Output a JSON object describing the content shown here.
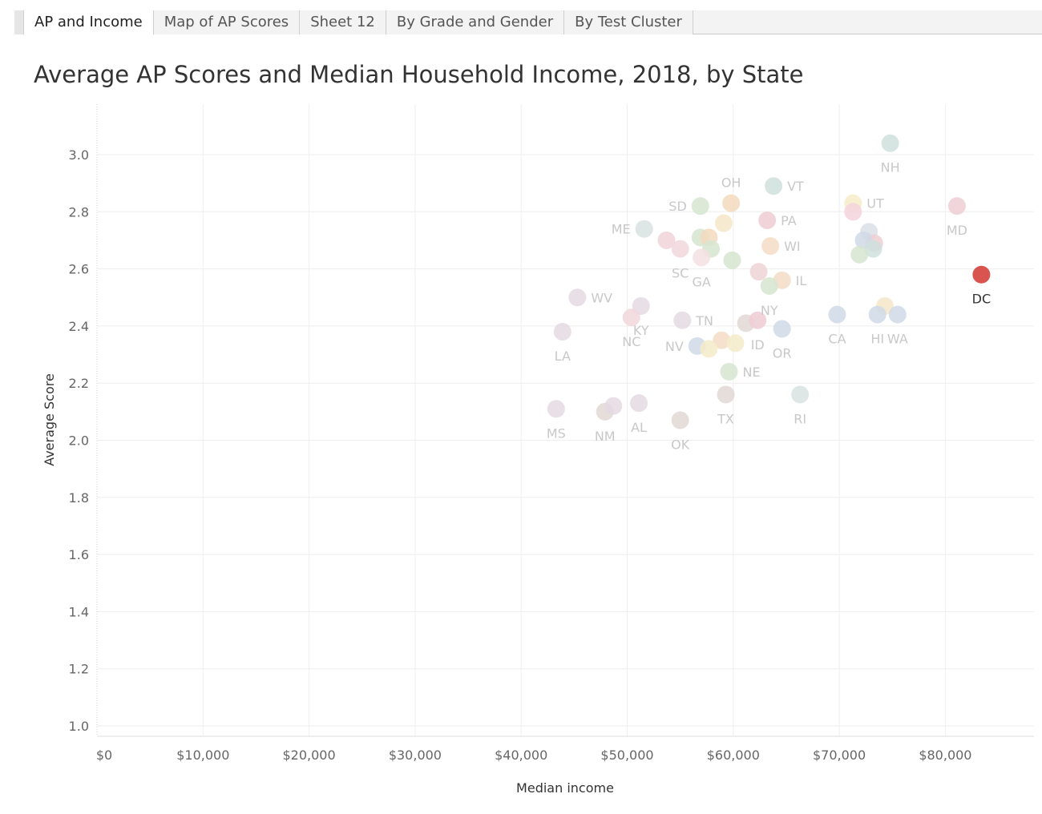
{
  "tabs": [
    {
      "label": "AP and Income",
      "active": true
    },
    {
      "label": "Map of AP Scores",
      "active": false
    },
    {
      "label": "Sheet 12",
      "active": false
    },
    {
      "label": "By Grade and Gender",
      "active": false
    },
    {
      "label": "By Test Cluster",
      "active": false
    }
  ],
  "chart_data": {
    "type": "scatter",
    "title": "Average AP Scores and Median Household Income, 2018, by State",
    "xlabel": "Median income",
    "ylabel": "Average Score",
    "xlim": [
      0,
      88000
    ],
    "ylim": [
      0.96,
      3.17
    ],
    "x_ticks": [
      {
        "value": 0,
        "label": "$0"
      },
      {
        "value": 10000,
        "label": "$10,000"
      },
      {
        "value": 20000,
        "label": "$20,000"
      },
      {
        "value": 30000,
        "label": "$30,000"
      },
      {
        "value": 40000,
        "label": "$40,000"
      },
      {
        "value": 50000,
        "label": "$50,000"
      },
      {
        "value": 60000,
        "label": "$60,000"
      },
      {
        "value": 70000,
        "label": "$70,000"
      },
      {
        "value": 80000,
        "label": "$80,000"
      }
    ],
    "y_ticks": [
      {
        "value": 1.0,
        "label": "1.0"
      },
      {
        "value": 1.2,
        "label": "1.2"
      },
      {
        "value": 1.4,
        "label": "1.4"
      },
      {
        "value": 1.6,
        "label": "1.6"
      },
      {
        "value": 1.8,
        "label": "1.8"
      },
      {
        "value": 2.0,
        "label": "2.0"
      },
      {
        "value": 2.2,
        "label": "2.2"
      },
      {
        "value": 2.4,
        "label": "2.4"
      },
      {
        "value": 2.6,
        "label": "2.6"
      },
      {
        "value": 2.8,
        "label": "2.8"
      },
      {
        "value": 3.0,
        "label": "3.0"
      }
    ],
    "grid": true,
    "highlight": "DC",
    "highlight_color": "#d9534f",
    "points": [
      {
        "x": 74800,
        "y": 3.04,
        "label": "NH",
        "label_pos": "below",
        "color": "#cfe0dd"
      },
      {
        "x": 63800,
        "y": 2.89,
        "label": "VT",
        "label_pos": "right",
        "color": "#cfe0dd"
      },
      {
        "x": 59800,
        "y": 2.83,
        "label": "OH",
        "label_pos": "above",
        "color": "#f3d9bd"
      },
      {
        "x": 56900,
        "y": 2.82,
        "label": "SD",
        "label_pos": "left",
        "color": "#d6e5d0"
      },
      {
        "x": 71300,
        "y": 2.83,
        "label": "UT",
        "label_pos": "right",
        "color": "#f7ecc8"
      },
      {
        "x": 71300,
        "y": 2.8,
        "label": "",
        "label_pos": "none",
        "color": "#f3d3dd"
      },
      {
        "x": 81100,
        "y": 2.82,
        "label": "MD",
        "label_pos": "below",
        "color": "#edcfd4"
      },
      {
        "x": 59100,
        "y": 2.76,
        "label": "",
        "label_pos": "none",
        "color": "#f5e6c9"
      },
      {
        "x": 63200,
        "y": 2.77,
        "label": "PA",
        "label_pos": "right",
        "color": "#efcdd3"
      },
      {
        "x": 51600,
        "y": 2.74,
        "label": "ME",
        "label_pos": "left",
        "color": "#d8e3e2"
      },
      {
        "x": 72800,
        "y": 2.73,
        "label": "",
        "label_pos": "none",
        "color": "#d9e1e8"
      },
      {
        "x": 73300,
        "y": 2.69,
        "label": "",
        "label_pos": "none",
        "color": "#f0cfd3"
      },
      {
        "x": 72300,
        "y": 2.7,
        "label": "",
        "label_pos": "none",
        "color": "#d0d9e6"
      },
      {
        "x": 73200,
        "y": 2.67,
        "label": "",
        "label_pos": "none",
        "color": "#cfe0dd"
      },
      {
        "x": 71900,
        "y": 2.65,
        "label": "",
        "label_pos": "none",
        "color": "#d6e5d0"
      },
      {
        "x": 53700,
        "y": 2.7,
        "label": "",
        "label_pos": "none",
        "color": "#f0d3d8"
      },
      {
        "x": 56900,
        "y": 2.71,
        "label": "",
        "label_pos": "none",
        "color": "#d6e5d0"
      },
      {
        "x": 57700,
        "y": 2.71,
        "label": "",
        "label_pos": "none",
        "color": "#f3d9bd"
      },
      {
        "x": 55000,
        "y": 2.67,
        "label": "SC",
        "label_pos": "below",
        "color": "#f2d7dc"
      },
      {
        "x": 57900,
        "y": 2.67,
        "label": "",
        "label_pos": "none",
        "color": "#d6e5d0"
      },
      {
        "x": 57000,
        "y": 2.64,
        "label": "GA",
        "label_pos": "below",
        "color": "#f4e0e3"
      },
      {
        "x": 63500,
        "y": 2.68,
        "label": "WI",
        "label_pos": "right",
        "color": "#f3dcc4"
      },
      {
        "x": 59900,
        "y": 2.63,
        "label": "",
        "label_pos": "none",
        "color": "#d6e5d0"
      },
      {
        "x": 62400,
        "y": 2.59,
        "label": "",
        "label_pos": "none",
        "color": "#eed3d6"
      },
      {
        "x": 64600,
        "y": 2.56,
        "label": "IL",
        "label_pos": "right",
        "color": "#f3dcc4"
      },
      {
        "x": 63400,
        "y": 2.54,
        "label": "NY",
        "label_pos": "below",
        "color": "#d6e5d0"
      },
      {
        "x": 83400,
        "y": 2.58,
        "label": "DC",
        "label_pos": "below",
        "color": "#d9534f"
      },
      {
        "x": 45300,
        "y": 2.5,
        "label": "WV",
        "label_pos": "right",
        "color": "#e4d9e3"
      },
      {
        "x": 51300,
        "y": 2.47,
        "label": "KY",
        "label_pos": "below",
        "color": "#e4d9e3"
      },
      {
        "x": 50400,
        "y": 2.43,
        "label": "NC",
        "label_pos": "below",
        "color": "#f2d7dc"
      },
      {
        "x": 55200,
        "y": 2.42,
        "label": "TN",
        "label_pos": "right",
        "color": "#e4d9e3"
      },
      {
        "x": 43900,
        "y": 2.38,
        "label": "LA",
        "label_pos": "below",
        "color": "#e4d9e3"
      },
      {
        "x": 74300,
        "y": 2.47,
        "label": "",
        "label_pos": "none",
        "color": "#f5e6c9"
      },
      {
        "x": 73600,
        "y": 2.44,
        "label": "HI",
        "label_pos": "below",
        "color": "#d0d9e6"
      },
      {
        "x": 75500,
        "y": 2.44,
        "label": "WA",
        "label_pos": "below",
        "color": "#d0d9e6"
      },
      {
        "x": 69800,
        "y": 2.44,
        "label": "CA",
        "label_pos": "below",
        "color": "#d0d9e6"
      },
      {
        "x": 61200,
        "y": 2.41,
        "label": "",
        "label_pos": "none",
        "color": "#e2d8d4"
      },
      {
        "x": 62300,
        "y": 2.42,
        "label": "ID",
        "label_pos": "below",
        "color": "#efcdd3"
      },
      {
        "x": 64600,
        "y": 2.39,
        "label": "OR",
        "label_pos": "below",
        "color": "#d0d9e6"
      },
      {
        "x": 56600,
        "y": 2.33,
        "label": "NV",
        "label_pos": "left",
        "color": "#d0d9e6"
      },
      {
        "x": 58900,
        "y": 2.35,
        "label": "",
        "label_pos": "none",
        "color": "#f3dcc4"
      },
      {
        "x": 60200,
        "y": 2.34,
        "label": "",
        "label_pos": "none",
        "color": "#f5ebc9"
      },
      {
        "x": 57700,
        "y": 2.32,
        "label": "",
        "label_pos": "none",
        "color": "#f5ebc9"
      },
      {
        "x": 59600,
        "y": 2.24,
        "label": "NE",
        "label_pos": "right",
        "color": "#d6e5d0"
      },
      {
        "x": 59300,
        "y": 2.16,
        "label": "TX",
        "label_pos": "below",
        "color": "#e2d8d4"
      },
      {
        "x": 66300,
        "y": 2.16,
        "label": "RI",
        "label_pos": "below",
        "color": "#d8e3e2"
      },
      {
        "x": 43300,
        "y": 2.11,
        "label": "MS",
        "label_pos": "below",
        "color": "#e4d9e3"
      },
      {
        "x": 47900,
        "y": 2.1,
        "label": "NM",
        "label_pos": "below",
        "color": "#e2d8d4"
      },
      {
        "x": 48700,
        "y": 2.12,
        "label": "",
        "label_pos": "none",
        "color": "#e4d9e3"
      },
      {
        "x": 51100,
        "y": 2.13,
        "label": "AL",
        "label_pos": "below",
        "color": "#e4d9e3"
      },
      {
        "x": 55000,
        "y": 2.07,
        "label": "OK",
        "label_pos": "below",
        "color": "#e2d8d4"
      }
    ]
  }
}
